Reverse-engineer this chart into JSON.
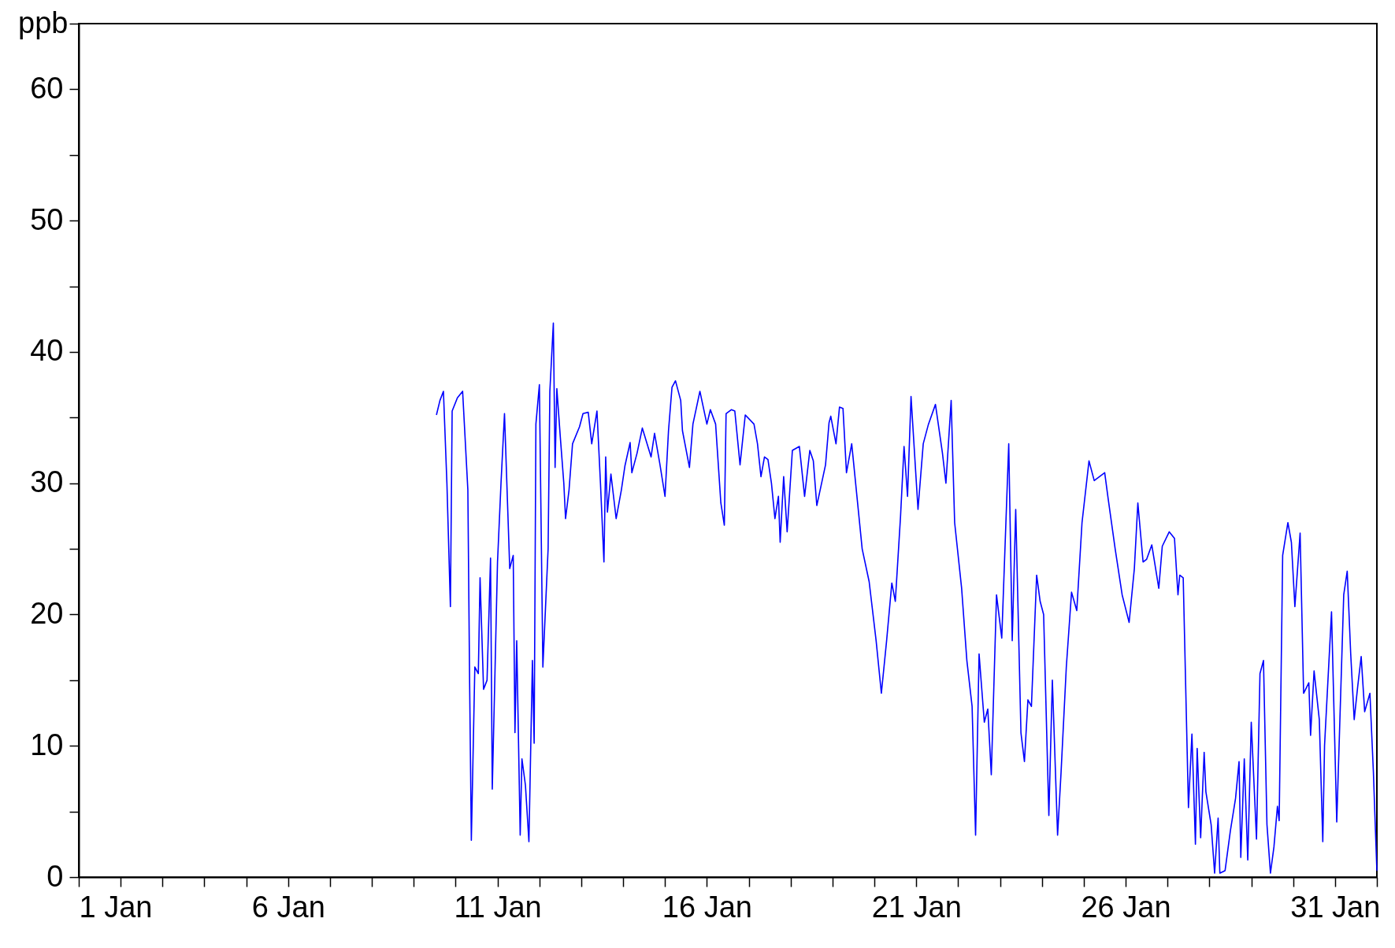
{
  "chart_data": {
    "type": "line",
    "ylabel": "ppb",
    "grid": false,
    "xlim": [
      "--01-01",
      "--02-01"
    ],
    "xticks": [
      {
        "value": "--01-01",
        "label": "1 Jan"
      },
      {
        "value": "--01-02",
        "label": null
      },
      {
        "value": "--01-03",
        "label": null
      },
      {
        "value": "--01-04",
        "label": null
      },
      {
        "value": "--01-05",
        "label": null
      },
      {
        "value": "--01-06",
        "label": "6 Jan"
      },
      {
        "value": "--01-07",
        "label": null
      },
      {
        "value": "--01-08",
        "label": null
      },
      {
        "value": "--01-09",
        "label": null
      },
      {
        "value": "--01-10",
        "label": null
      },
      {
        "value": "--01-11",
        "label": "11 Jan"
      },
      {
        "value": "--01-12",
        "label": null
      },
      {
        "value": "--01-13",
        "label": null
      },
      {
        "value": "--01-14",
        "label": null
      },
      {
        "value": "--01-15",
        "label": null
      },
      {
        "value": "--01-16",
        "label": "16 Jan"
      },
      {
        "value": "--01-17",
        "label": null
      },
      {
        "value": "--01-18",
        "label": null
      },
      {
        "value": "--01-19",
        "label": null
      },
      {
        "value": "--01-20",
        "label": null
      },
      {
        "value": "--01-21",
        "label": "21 Jan"
      },
      {
        "value": "--01-22",
        "label": null
      },
      {
        "value": "--01-23",
        "label": null
      },
      {
        "value": "--01-24",
        "label": null
      },
      {
        "value": "--01-25",
        "label": null
      },
      {
        "value": "--01-26",
        "label": "26 Jan"
      },
      {
        "value": "--01-27",
        "label": null
      },
      {
        "value": "--01-28",
        "label": null
      },
      {
        "value": "--01-29",
        "label": null
      },
      {
        "value": "--01-30",
        "label": null
      },
      {
        "value": "--01-31",
        "label": "31 Jan"
      },
      {
        "value": "--02-01",
        "label": null
      }
    ],
    "ylim": [
      0,
      65
    ],
    "yticks": [
      0,
      {
        "value": 5,
        "label": null
      },
      10,
      {
        "value": 15,
        "label": null
      },
      20,
      {
        "value": 25,
        "label": null
      },
      30,
      {
        "value": 35,
        "label": null
      },
      40,
      {
        "value": 45,
        "label": null
      },
      50,
      {
        "value": 55,
        "label": null
      },
      60,
      {
        "value": 65,
        "label": null
      }
    ],
    "series": [
      {
        "color": "#0000ff",
        "x": [
          "--01-09T13:00",
          "--01-09T15:00",
          "--01-09T17:00",
          "--01-09T19:00",
          "--01-09T21:00",
          "--01-09T22:00",
          "--01-10T01:00",
          "--01-10T04:00",
          "--01-10T07:00",
          "--01-10T08:00",
          "--01-10T09:00",
          "--01-10T11:00",
          "--01-10T13:00",
          "--01-10T14:00",
          "--01-10T16:00",
          "--01-10T18:00",
          "--01-10T20:00",
          "--01-10T21:00",
          "--01-11T00:00",
          "--01-11T02:00",
          "--01-11T04:00",
          "--01-11T07:00",
          "--01-11T09:00",
          "--01-11T10:00",
          "--01-11T11:00",
          "--01-11T13:00",
          "--01-11T14:00",
          "--01-11T16:00",
          "--01-11T18:00",
          "--01-11T20:00",
          "--01-11T21:00",
          "--01-11T22:00",
          "--01-12T00:00",
          "--01-12T02:00",
          "--01-12T05:00",
          "--01-12T06:00",
          "--01-12T08:00",
          "--01-12T09:00",
          "--01-12T10:00",
          "--01-12T12:00",
          "--01-12T14:00",
          "--01-12T15:00",
          "--01-12T17:00",
          "--01-12T19:00",
          "--01-12T23:00",
          "--01-13T01:00",
          "--01-13T04:00",
          "--01-13T06:00",
          "--01-13T09:00",
          "--01-13T11:00",
          "--01-13T13:00",
          "--01-13T14:00",
          "--01-13T15:00",
          "--01-13T17:00",
          "--01-13T20:00",
          "--01-13T23:00",
          "--01-14T01:00",
          "--01-14T04:00",
          "--01-14T05:00",
          "--01-14T08:00",
          "--01-14T11:00",
          "--01-14T16:00",
          "--01-14T18:00",
          "--01-14T21:00",
          "--01-15T00:00",
          "--01-15T02:00",
          "--01-15T04:00",
          "--01-15T06:00",
          "--01-15T09:00",
          "--01-15T10:00",
          "--01-15T14:00",
          "--01-15T16:00",
          "--01-15T20:00",
          "--01-16T00:00",
          "--01-16T02:00",
          "--01-16T05:00",
          "--01-16T08:00",
          "--01-16T10:00",
          "--01-16T11:00",
          "--01-16T14:00",
          "--01-16T16:00",
          "--01-16T19:00",
          "--01-16T22:00",
          "--01-17T03:00",
          "--01-17T05:00",
          "--01-17T07:00",
          "--01-17T09:00",
          "--01-17T11:00",
          "--01-17T13:00",
          "--01-17T15:00",
          "--01-17T17:00",
          "--01-17T18:00",
          "--01-17T20:00",
          "--01-17T22:00",
          "--01-18T01:00",
          "--01-18T05:00",
          "--01-18T08:00",
          "--01-18T11:00",
          "--01-18T13:00",
          "--01-18T15:00",
          "--01-18T20:00",
          "--01-18T22:00",
          "--01-18T23:00",
          "--01-19T02:00",
          "--01-19T04:00",
          "--01-19T06:00",
          "--01-19T08:00",
          "--01-19T11:00",
          "--01-19T14:00",
          "--01-19T17:00",
          "--01-19T21:00",
          "--01-20T01:00",
          "--01-20T04:00",
          "--01-20T07:00",
          "--01-20T10:00",
          "--01-20T12:00",
          "--01-20T15:00",
          "--01-20T17:00",
          "--01-20T19:00",
          "--01-20T21:00",
          "--01-21T01:00",
          "--01-21T04:00",
          "--01-21T07:00",
          "--01-21T11:00",
          "--01-21T15:00",
          "--01-21T17:00",
          "--01-21T20:00",
          "--01-21T22:00",
          "--01-22T02:00",
          "--01-22T05:00",
          "--01-22T08:00",
          "--01-22T10:00",
          "--01-22T12:00",
          "--01-22T15:00",
          "--01-22T17:00",
          "--01-22T19:00",
          "--01-22T22:00",
          "--01-23T01:00",
          "--01-23T05:00",
          "--01-23T07:00",
          "--01-23T09:00",
          "--01-23T12:00",
          "--01-23T14:00",
          "--01-23T16:00",
          "--01-23T18:00",
          "--01-23T21:00",
          "--01-23T23:00",
          "--01-24T01:00",
          "--01-24T04:00",
          "--01-24T06:00",
          "--01-24T09:00",
          "--01-24T11:00",
          "--01-24T14:00",
          "--01-24T17:00",
          "--01-24T20:00",
          "--01-24T23:00",
          "--01-25T03:00",
          "--01-25T06:00",
          "--01-25T09:00",
          "--01-25T12:00",
          "--01-25T14:00",
          "--01-25T18:00",
          "--01-25T22:00",
          "--01-26T02:00",
          "--01-26T05:00",
          "--01-26T07:00",
          "--01-26T10:00",
          "--01-26T12:00",
          "--01-26T15:00",
          "--01-26T19:00",
          "--01-26T21:00",
          "--01-27T01:00",
          "--01-27T04:00",
          "--01-27T06:00",
          "--01-27T07:00",
          "--01-27T09:00",
          "--01-27T12:00",
          "--01-27T14:00",
          "--01-27T16:00",
          "--01-27T17:00",
          "--01-27T19:00",
          "--01-27T21:00",
          "--01-27T22:00",
          "--01-28T01:00",
          "--01-28T03:00",
          "--01-28T05:00",
          "--01-28T06:00",
          "--01-28T09:00",
          "--01-28T12:00",
          "--01-28T15:00",
          "--01-28T17:00",
          "--01-28T18:00",
          "--01-28T20:00",
          "--01-28T22:00",
          "--01-29T00:00",
          "--01-29T03:00",
          "--01-29T05:00",
          "--01-29T07:00",
          "--01-29T09:00",
          "--01-29T11:00",
          "--01-29T13:00",
          "--01-29T15:00",
          "--01-29T16:00",
          "--01-29T18:00",
          "--01-29T21:00",
          "--01-29T23:00",
          "--01-30T01:00",
          "--01-30T04:00",
          "--01-30T06:00",
          "--01-30T09:00",
          "--01-30T10:00",
          "--01-30T12:00",
          "--01-30T15:00",
          "--01-30T17:00",
          "--01-30T18:00",
          "--01-30T22:00",
          "--01-31T01:00",
          "--01-31T05:00",
          "--01-31T07:00",
          "--01-31T09:00",
          "--01-31T11:00",
          "--01-31T13:00",
          "--01-31T15:00",
          "--01-31T17:00",
          "--01-31T20:00",
          "--01-31T22:00",
          "--01-31T23:00",
          "--02-01T00:00"
        ],
        "values": [
          35.2,
          36.3,
          37,
          30,
          20.6,
          35.5,
          36.5,
          37,
          29.5,
          15,
          2.8,
          16,
          15.5,
          22.8,
          14.3,
          15,
          24.3,
          6.7,
          24,
          30,
          35.3,
          23.5,
          24.5,
          11,
          18,
          3.2,
          9,
          7,
          2.7,
          16.5,
          10.2,
          34.5,
          37.5,
          16,
          25,
          37,
          42.2,
          31.2,
          37.2,
          33.5,
          30,
          27.3,
          29.5,
          33,
          34.3,
          35.3,
          35.4,
          33,
          35.5,
          30,
          24,
          32,
          27.8,
          30.7,
          27.3,
          29.5,
          31.3,
          33.1,
          30.8,
          32.3,
          34.2,
          32,
          33.8,
          31.5,
          29,
          34,
          37.3,
          37.8,
          36.3,
          34,
          31.2,
          34.5,
          37,
          34.5,
          35.6,
          34.5,
          28.5,
          26.8,
          35.3,
          35.6,
          35.5,
          31.4,
          35.2,
          34.5,
          33,
          30.5,
          32,
          31.8,
          30,
          27.3,
          29,
          25.5,
          30.5,
          26.3,
          32.5,
          32.8,
          29,
          32.5,
          31.7,
          28.3,
          31.4,
          34.6,
          35.1,
          33,
          35.8,
          35.7,
          30.8,
          33,
          29,
          25,
          22.5,
          18,
          14,
          18,
          22.4,
          21,
          27.5,
          32.8,
          29,
          36.6,
          28,
          33,
          34.5,
          36,
          32.3,
          30,
          36.3,
          27,
          22,
          16.5,
          13,
          3.2,
          17,
          11.8,
          12.8,
          7.8,
          21.5,
          18.2,
          33,
          18,
          28,
          11,
          8.8,
          13.5,
          13,
          23,
          21,
          20,
          4.7,
          15,
          3.2,
          8,
          16,
          21.7,
          20.3,
          27,
          31.7,
          30.2,
          30.5,
          30.8,
          28.8,
          25,
          21.5,
          19.4,
          23.5,
          28.5,
          24,
          24.2,
          25.3,
          22,
          25.2,
          26.3,
          25.8,
          21.5,
          23,
          22.8,
          5.3,
          10.9,
          2.5,
          9.8,
          3,
          9.5,
          6.5,
          4,
          0.3,
          4.5,
          0.3,
          0.5,
          3.5,
          6,
          8.8,
          1.5,
          9,
          1.3,
          11.8,
          2.9,
          15.5,
          16.5,
          4,
          0.3,
          2.3,
          5.4,
          4.3,
          24.5,
          27,
          25.5,
          20.6,
          26.2,
          14,
          14.8,
          10.8,
          15.7,
          12,
          2.7,
          10,
          20.2,
          4.2,
          21.5,
          23.3,
          17,
          12,
          14.5,
          16.8,
          12.6,
          14,
          8,
          4.2,
          0.5
        ]
      }
    ]
  }
}
